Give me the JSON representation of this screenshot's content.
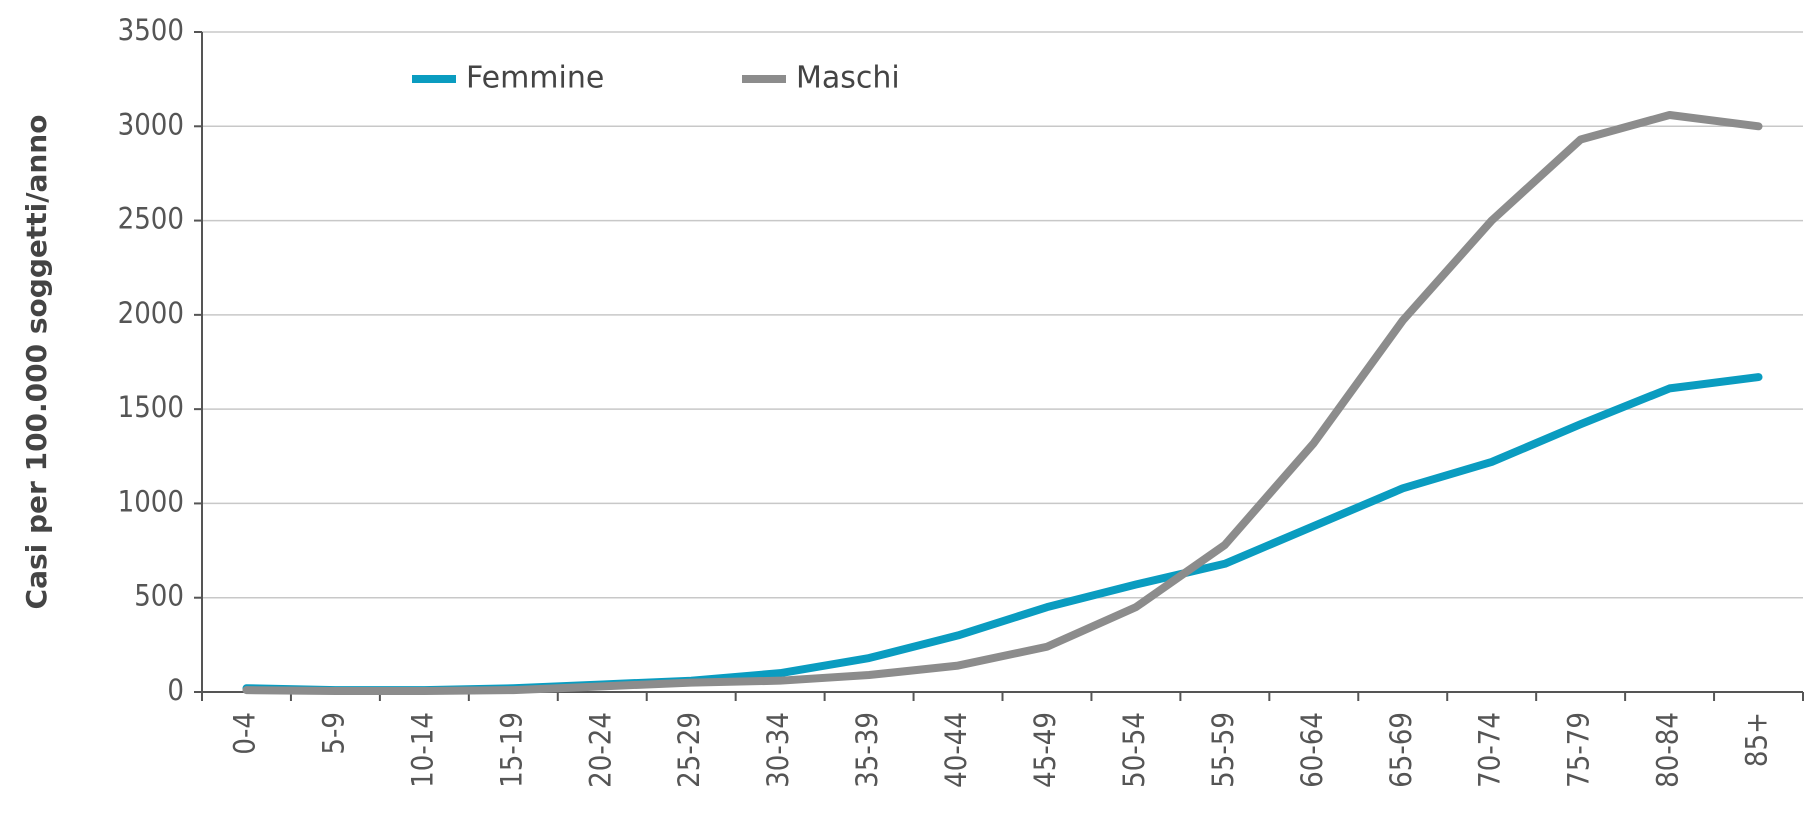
{
  "chart_data": {
    "type": "line",
    "y_label": "Casi per 100.000 soggetti/anno",
    "categories": [
      "0-4",
      "5-9",
      "10-14",
      "15-19",
      "20-24",
      "25-29",
      "30-34",
      "35-39",
      "40-44",
      "45-49",
      "50-54",
      "55-59",
      "60-64",
      "65-69",
      "70-74",
      "75-79",
      "80-84",
      "85+"
    ],
    "series": [
      {
        "name": "Femmine",
        "color": "#0a9cc0",
        "values": [
          20,
          10,
          10,
          20,
          40,
          60,
          100,
          180,
          300,
          450,
          570,
          680,
          880,
          1080,
          1220,
          1420,
          1610,
          1670
        ]
      },
      {
        "name": "Maschi",
        "color": "#8c8c8c",
        "values": [
          10,
          5,
          5,
          10,
          30,
          50,
          60,
          90,
          140,
          240,
          450,
          780,
          1320,
          1970,
          2500,
          2930,
          3060,
          3000
        ]
      }
    ],
    "ylim": [
      0,
      3500
    ],
    "yticks": [
      0,
      500,
      1000,
      1500,
      2000,
      2500,
      3000,
      3500
    ],
    "grid": true
  }
}
